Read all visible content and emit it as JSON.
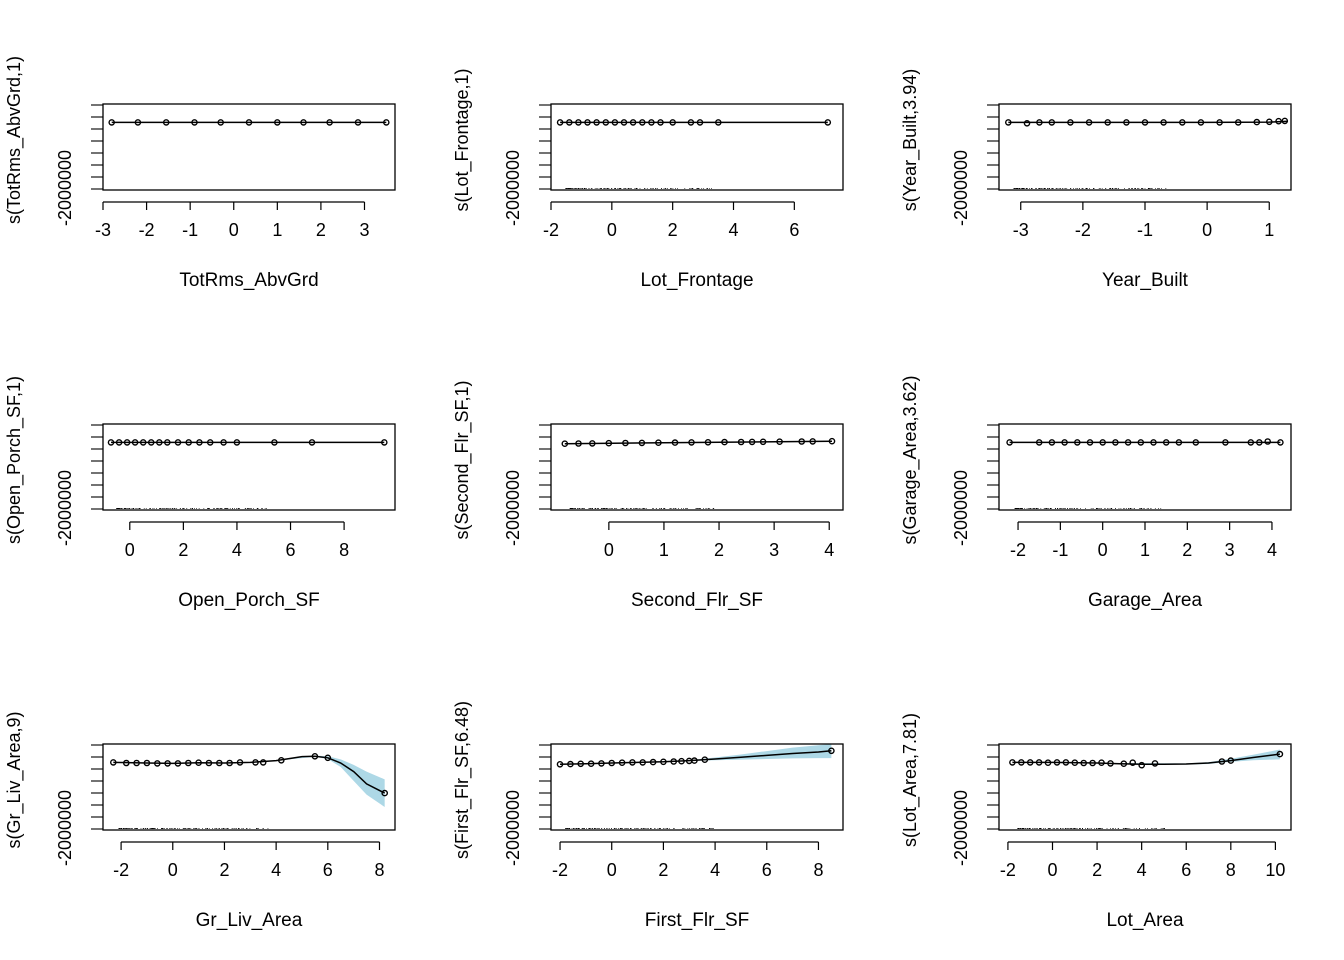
{
  "colors": {
    "band": "#add8e6",
    "line": "#000000",
    "point": "#000000"
  },
  "chart_data": [
    {
      "type": "scatter",
      "title": "",
      "xlabel": "TotRms_AbvGrd",
      "ylabel": "s(TotRms_AbvGrd,1)",
      "xlim": [
        -3.0,
        3.7
      ],
      "ylim": [
        -2200000,
        600000
      ],
      "xticks": [
        "-3",
        "-2",
        "-1",
        "0",
        "1",
        "2",
        "3"
      ],
      "ytick_label": "-2000000",
      "rug": false,
      "curve": [
        [
          -2.8,
          0
        ],
        [
          3.5,
          0
        ]
      ],
      "band_upper": [],
      "band_lower": [],
      "points": [
        [
          -2.8,
          0
        ],
        [
          -2.2,
          0
        ],
        [
          -1.55,
          0
        ],
        [
          -0.9,
          0
        ],
        [
          -0.3,
          0
        ],
        [
          0.35,
          0
        ],
        [
          1.0,
          0
        ],
        [
          1.6,
          0
        ],
        [
          2.2,
          0
        ],
        [
          2.85,
          0
        ],
        [
          3.5,
          0
        ]
      ]
    },
    {
      "type": "scatter",
      "title": "",
      "xlabel": "Lot_Frontage",
      "ylabel": "s(Lot_Frontage,1)",
      "xlim": [
        -2.0,
        7.6
      ],
      "ylim": [
        -2200000,
        600000
      ],
      "xticks": [
        "-2",
        "0",
        "2",
        "4",
        "6"
      ],
      "ytick_label": "-2000000",
      "rug": true,
      "curve": [
        [
          -1.7,
          0
        ],
        [
          7.1,
          0
        ]
      ],
      "band_upper": [],
      "band_lower": [],
      "points": [
        [
          -1.7,
          0
        ],
        [
          -1.4,
          0
        ],
        [
          -1.1,
          0
        ],
        [
          -0.8,
          0
        ],
        [
          -0.5,
          0
        ],
        [
          -0.2,
          0
        ],
        [
          0.1,
          0
        ],
        [
          0.4,
          0
        ],
        [
          0.7,
          0
        ],
        [
          1.0,
          0
        ],
        [
          1.3,
          0
        ],
        [
          1.6,
          0
        ],
        [
          2.0,
          0
        ],
        [
          2.6,
          0
        ],
        [
          2.9,
          0
        ],
        [
          3.5,
          0
        ],
        [
          7.1,
          0
        ]
      ]
    },
    {
      "type": "scatter",
      "title": "",
      "xlabel": "Year_Built",
      "ylabel": "s(Year_Built,3.94)",
      "xlim": [
        -3.35,
        1.35
      ],
      "ylim": [
        -2200000,
        600000
      ],
      "xticks": [
        "-3",
        "-2",
        "-1",
        "0",
        "1"
      ],
      "ytick_label": "-2000000",
      "rug": true,
      "curve": [
        [
          -3.2,
          0
        ],
        [
          -2.0,
          0
        ],
        [
          -1.0,
          0
        ],
        [
          0.0,
          0
        ],
        [
          1.0,
          10000
        ],
        [
          1.3,
          40000
        ]
      ],
      "band_upper": [],
      "band_lower": [],
      "points": [
        [
          -3.2,
          0
        ],
        [
          -2.9,
          -30000
        ],
        [
          -2.7,
          0
        ],
        [
          -2.5,
          0
        ],
        [
          -2.2,
          0
        ],
        [
          -1.9,
          0
        ],
        [
          -1.6,
          0
        ],
        [
          -1.3,
          0
        ],
        [
          -1.0,
          0
        ],
        [
          -0.7,
          0
        ],
        [
          -0.4,
          0
        ],
        [
          -0.1,
          0
        ],
        [
          0.2,
          0
        ],
        [
          0.5,
          0
        ],
        [
          0.8,
          10000
        ],
        [
          1.0,
          20000
        ],
        [
          1.15,
          40000
        ],
        [
          1.25,
          50000
        ]
      ]
    },
    {
      "type": "scatter",
      "title": "",
      "xlabel": "Open_Porch_SF",
      "ylabel": "s(Open_Porch_SF,1)",
      "xlim": [
        -1.0,
        9.9
      ],
      "ylim": [
        -2200000,
        600000
      ],
      "xticks": [
        "0",
        "2",
        "4",
        "6",
        "8"
      ],
      "ytick_label": "-2000000",
      "rug": true,
      "curve": [
        [
          -0.7,
          0
        ],
        [
          9.5,
          0
        ]
      ],
      "band_upper": [],
      "band_lower": [],
      "points": [
        [
          -0.7,
          0
        ],
        [
          -0.4,
          0
        ],
        [
          -0.1,
          0
        ],
        [
          0.2,
          0
        ],
        [
          0.5,
          0
        ],
        [
          0.8,
          0
        ],
        [
          1.1,
          0
        ],
        [
          1.4,
          0
        ],
        [
          1.8,
          0
        ],
        [
          2.2,
          0
        ],
        [
          2.6,
          0
        ],
        [
          3.0,
          0
        ],
        [
          3.5,
          0
        ],
        [
          4.0,
          0
        ],
        [
          5.4,
          0
        ],
        [
          6.8,
          0
        ],
        [
          9.5,
          0
        ]
      ]
    },
    {
      "type": "scatter",
      "title": "",
      "xlabel": "Second_Flr_SF",
      "ylabel": "s(Second_Flr_SF,1)",
      "xlim": [
        -1.05,
        4.25
      ],
      "ylim": [
        -2200000,
        600000
      ],
      "xticks": [
        "0",
        "1",
        "2",
        "3",
        "4"
      ],
      "ytick_label": "-2000000",
      "rug": true,
      "curve": [
        [
          -0.8,
          -40000
        ],
        [
          4.05,
          40000
        ]
      ],
      "band_upper": [],
      "band_lower": [],
      "points": [
        [
          -0.8,
          -40000
        ],
        [
          -0.55,
          -35000
        ],
        [
          -0.3,
          -30000
        ],
        [
          0.0,
          -25000
        ],
        [
          0.3,
          -20000
        ],
        [
          0.6,
          -15000
        ],
        [
          0.9,
          -10000
        ],
        [
          1.2,
          -5000
        ],
        [
          1.5,
          0
        ],
        [
          1.8,
          5000
        ],
        [
          2.1,
          10000
        ],
        [
          2.4,
          15000
        ],
        [
          2.6,
          18000
        ],
        [
          2.8,
          20000
        ],
        [
          3.1,
          25000
        ],
        [
          3.5,
          30000
        ],
        [
          3.7,
          33000
        ],
        [
          4.05,
          40000
        ]
      ]
    },
    {
      "type": "scatter",
      "title": "",
      "xlabel": "Garage_Area",
      "ylabel": "s(Garage_Area,3.62)",
      "xlim": [
        -2.45,
        4.45
      ],
      "ylim": [
        -2200000,
        600000
      ],
      "xticks": [
        "-2",
        "-1",
        "0",
        "1",
        "2",
        "3",
        "4"
      ],
      "ytick_label": "-2000000",
      "rug": true,
      "curve": [
        [
          -2.2,
          0
        ],
        [
          -1.0,
          0
        ],
        [
          0.0,
          0
        ],
        [
          1.0,
          0
        ],
        [
          2.0,
          0
        ],
        [
          3.0,
          0
        ],
        [
          4.2,
          0
        ]
      ],
      "band_upper": [],
      "band_lower": [],
      "points": [
        [
          -2.2,
          0
        ],
        [
          -1.5,
          0
        ],
        [
          -1.2,
          0
        ],
        [
          -0.9,
          0
        ],
        [
          -0.6,
          0
        ],
        [
          -0.3,
          0
        ],
        [
          0.0,
          0
        ],
        [
          0.3,
          0
        ],
        [
          0.6,
          0
        ],
        [
          0.9,
          0
        ],
        [
          1.2,
          0
        ],
        [
          1.5,
          0
        ],
        [
          1.8,
          0
        ],
        [
          2.2,
          0
        ],
        [
          2.9,
          0
        ],
        [
          3.5,
          0
        ],
        [
          3.7,
          0
        ],
        [
          3.9,
          30000
        ],
        [
          4.2,
          0
        ]
      ]
    },
    {
      "type": "line",
      "title": "",
      "xlabel": "Gr_Liv_Area",
      "ylabel": "s(Gr_Liv_Area,9)",
      "xlim": [
        -2.7,
        8.6
      ],
      "ylim": [
        -2200000,
        600000
      ],
      "xticks": [
        "-2",
        "0",
        "2",
        "4",
        "6",
        "8"
      ],
      "ytick_label": "-2000000",
      "rug": true,
      "curve": [
        [
          -2.3,
          0
        ],
        [
          -1.0,
          -20000
        ],
        [
          0.0,
          -30000
        ],
        [
          1.0,
          -10000
        ],
        [
          2.0,
          -20000
        ],
        [
          3.0,
          0
        ],
        [
          4.0,
          60000
        ],
        [
          5.0,
          190000
        ],
        [
          5.5,
          200000
        ],
        [
          6.0,
          150000
        ],
        [
          6.5,
          -20000
        ],
        [
          7.0,
          -300000
        ],
        [
          7.5,
          -700000
        ],
        [
          8.2,
          -1000000
        ]
      ],
      "band_upper": [
        [
          -2.3,
          0
        ],
        [
          4.0,
          60000
        ],
        [
          5.5,
          220000
        ],
        [
          6.0,
          200000
        ],
        [
          6.5,
          100000
        ],
        [
          7.0,
          -80000
        ],
        [
          7.5,
          -300000
        ],
        [
          8.2,
          -550000
        ]
      ],
      "band_lower": [
        [
          -2.3,
          0
        ],
        [
          4.0,
          60000
        ],
        [
          5.5,
          180000
        ],
        [
          6.0,
          110000
        ],
        [
          6.5,
          -150000
        ],
        [
          7.0,
          -600000
        ],
        [
          7.5,
          -1050000
        ],
        [
          8.2,
          -1450000
        ]
      ],
      "points": [
        [
          -2.3,
          0
        ],
        [
          -1.8,
          -20000
        ],
        [
          -1.4,
          -20000
        ],
        [
          -1.0,
          -20000
        ],
        [
          -0.6,
          -30000
        ],
        [
          -0.2,
          -30000
        ],
        [
          0.2,
          -30000
        ],
        [
          0.6,
          -20000
        ],
        [
          1.0,
          -10000
        ],
        [
          1.4,
          -20000
        ],
        [
          1.8,
          -20000
        ],
        [
          2.2,
          -20000
        ],
        [
          2.6,
          0
        ],
        [
          3.2,
          0
        ],
        [
          3.5,
          0
        ],
        [
          4.2,
          70000
        ],
        [
          5.5,
          200000
        ],
        [
          6.0,
          150000
        ],
        [
          8.2,
          -1000000
        ]
      ]
    },
    {
      "type": "line",
      "title": "",
      "xlabel": "First_Flr_SF",
      "ylabel": "s(First_Flr_SF,6.48)",
      "xlim": [
        -2.35,
        8.95
      ],
      "ylim": [
        -2200000,
        600000
      ],
      "xticks": [
        "-2",
        "0",
        "2",
        "4",
        "6",
        "8"
      ],
      "ytick_label": "-2000000",
      "rug": true,
      "curve": [
        [
          -2.0,
          -60000
        ],
        [
          -1.0,
          -40000
        ],
        [
          0.0,
          -20000
        ],
        [
          1.0,
          0
        ],
        [
          2.0,
          20000
        ],
        [
          3.0,
          60000
        ],
        [
          4.0,
          110000
        ],
        [
          5.0,
          170000
        ],
        [
          6.0,
          230000
        ],
        [
          7.0,
          290000
        ],
        [
          8.0,
          340000
        ],
        [
          8.5,
          380000
        ]
      ],
      "band_upper": [
        [
          -2.0,
          -60000
        ],
        [
          3.0,
          70000
        ],
        [
          4.0,
          160000
        ],
        [
          5.0,
          260000
        ],
        [
          6.0,
          370000
        ],
        [
          7.0,
          480000
        ],
        [
          8.0,
          560000
        ],
        [
          8.5,
          600000
        ]
      ],
      "band_lower": [
        [
          -2.0,
          -60000
        ],
        [
          3.0,
          50000
        ],
        [
          4.0,
          70000
        ],
        [
          5.0,
          90000
        ],
        [
          6.0,
          110000
        ],
        [
          7.0,
          130000
        ],
        [
          8.0,
          140000
        ],
        [
          8.5,
          140000
        ]
      ],
      "points": [
        [
          -2.0,
          -60000
        ],
        [
          -1.6,
          -55000
        ],
        [
          -1.2,
          -45000
        ],
        [
          -0.8,
          -40000
        ],
        [
          -0.4,
          -30000
        ],
        [
          0.0,
          -20000
        ],
        [
          0.4,
          -10000
        ],
        [
          0.8,
          0
        ],
        [
          1.2,
          0
        ],
        [
          1.6,
          10000
        ],
        [
          2.0,
          20000
        ],
        [
          2.4,
          30000
        ],
        [
          2.7,
          40000
        ],
        [
          3.0,
          50000
        ],
        [
          3.2,
          60000
        ],
        [
          3.6,
          90000
        ],
        [
          8.5,
          380000
        ]
      ]
    },
    {
      "type": "line",
      "title": "",
      "xlabel": "Lot_Area",
      "ylabel": "s(Lot_Area,7.81)",
      "xlim": [
        -2.4,
        10.7
      ],
      "ylim": [
        -2200000,
        600000
      ],
      "xticks": [
        "-2",
        "0",
        "2",
        "4",
        "6",
        "8",
        "10"
      ],
      "ytick_label": "-2000000",
      "rug": true,
      "curve": [
        [
          -1.8,
          0
        ],
        [
          0.0,
          0
        ],
        [
          2.0,
          -20000
        ],
        [
          3.0,
          -40000
        ],
        [
          4.0,
          -60000
        ],
        [
          5.0,
          -60000
        ],
        [
          6.0,
          -50000
        ],
        [
          7.0,
          -20000
        ],
        [
          8.0,
          60000
        ],
        [
          9.0,
          160000
        ],
        [
          10.2,
          270000
        ]
      ],
      "band_upper": [
        [
          -1.8,
          0
        ],
        [
          6.0,
          -30000
        ],
        [
          7.0,
          10000
        ],
        [
          8.0,
          120000
        ],
        [
          9.0,
          250000
        ],
        [
          10.2,
          420000
        ]
      ],
      "band_lower": [
        [
          -1.8,
          0
        ],
        [
          6.0,
          -70000
        ],
        [
          7.0,
          -50000
        ],
        [
          8.0,
          20000
        ],
        [
          9.0,
          70000
        ],
        [
          10.2,
          100000
        ]
      ],
      "points": [
        [
          -1.8,
          0
        ],
        [
          -1.4,
          0
        ],
        [
          -1.0,
          0
        ],
        [
          -0.6,
          0
        ],
        [
          -0.2,
          -10000
        ],
        [
          0.2,
          0
        ],
        [
          0.6,
          0
        ],
        [
          1.0,
          -10000
        ],
        [
          1.4,
          -20000
        ],
        [
          1.8,
          -20000
        ],
        [
          2.2,
          -10000
        ],
        [
          2.6,
          -30000
        ],
        [
          3.2,
          -40000
        ],
        [
          3.6,
          -10000
        ],
        [
          4.0,
          -90000
        ],
        [
          4.6,
          -30000
        ],
        [
          7.6,
          30000
        ],
        [
          8.0,
          60000
        ],
        [
          10.2,
          270000
        ]
      ]
    }
  ]
}
